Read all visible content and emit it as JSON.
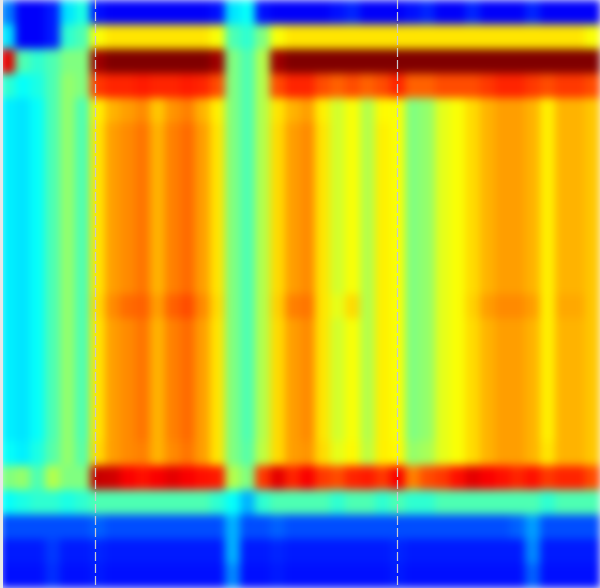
{
  "chart_data": {
    "type": "heatmap",
    "zlim": [
      0,
      1
    ],
    "tick_labels": false,
    "cells": [
      [
        0.25,
        0.12,
        0.12,
        0.15,
        0.35,
        0.4,
        0.14,
        0.12,
        0.12,
        0.12,
        0.12,
        0.12,
        0.12,
        0.12,
        0.14,
        0.35,
        0.38,
        0.14,
        0.12,
        0.12,
        0.12,
        0.12,
        0.14,
        0.16,
        0.12,
        0.12,
        0.12,
        0.14,
        0.16,
        0.12,
        0.12,
        0.16,
        0.12,
        0.12,
        0.12,
        0.16,
        0.12,
        0.12,
        0.12,
        0.12
      ],
      [
        0.35,
        0.12,
        0.12,
        0.15,
        0.42,
        0.45,
        0.62,
        0.65,
        0.65,
        0.65,
        0.65,
        0.65,
        0.65,
        0.65,
        0.62,
        0.45,
        0.42,
        0.5,
        0.62,
        0.65,
        0.65,
        0.65,
        0.65,
        0.65,
        0.65,
        0.65,
        0.65,
        0.65,
        0.65,
        0.65,
        0.65,
        0.65,
        0.65,
        0.65,
        0.65,
        0.65,
        0.65,
        0.65,
        0.65,
        0.62
      ],
      [
        0.9,
        0.45,
        0.42,
        0.45,
        0.5,
        0.5,
        0.97,
        1,
        1,
        1,
        1,
        1,
        1,
        1,
        0.97,
        0.5,
        0.45,
        0.55,
        0.97,
        1,
        1,
        1,
        1,
        1,
        1,
        1,
        1,
        1,
        1,
        1,
        1,
        1,
        1,
        1,
        1,
        1,
        1,
        1,
        1,
        1
      ],
      [
        0.42,
        0.38,
        0.4,
        0.45,
        0.52,
        0.5,
        0.82,
        0.84,
        0.84,
        0.85,
        0.84,
        0.84,
        0.85,
        0.84,
        0.8,
        0.5,
        0.45,
        0.55,
        0.8,
        0.84,
        0.84,
        0.8,
        0.78,
        0.8,
        0.78,
        0.8,
        0.84,
        0.78,
        0.78,
        0.8,
        0.8,
        0.8,
        0.82,
        0.84,
        0.84,
        0.82,
        0.8,
        0.82,
        0.82,
        0.8
      ],
      [
        0.36,
        0.35,
        0.38,
        0.45,
        0.52,
        0.45,
        0.64,
        0.7,
        0.72,
        0.74,
        0.68,
        0.73,
        0.75,
        0.7,
        0.64,
        0.5,
        0.45,
        0.55,
        0.65,
        0.7,
        0.72,
        0.64,
        0.58,
        0.62,
        0.55,
        0.63,
        0.62,
        0.5,
        0.52,
        0.6,
        0.62,
        0.66,
        0.7,
        0.72,
        0.72,
        0.7,
        0.64,
        0.7,
        0.7,
        0.68
      ],
      [
        0.36,
        0.35,
        0.38,
        0.45,
        0.52,
        0.45,
        0.65,
        0.72,
        0.74,
        0.76,
        0.7,
        0.75,
        0.77,
        0.72,
        0.65,
        0.5,
        0.45,
        0.55,
        0.66,
        0.72,
        0.74,
        0.65,
        0.58,
        0.62,
        0.55,
        0.64,
        0.62,
        0.5,
        0.52,
        0.6,
        0.62,
        0.66,
        0.7,
        0.72,
        0.72,
        0.7,
        0.64,
        0.7,
        0.7,
        0.68
      ],
      [
        0.36,
        0.35,
        0.38,
        0.45,
        0.52,
        0.45,
        0.65,
        0.72,
        0.74,
        0.76,
        0.7,
        0.75,
        0.77,
        0.72,
        0.65,
        0.5,
        0.45,
        0.55,
        0.66,
        0.72,
        0.74,
        0.65,
        0.58,
        0.62,
        0.55,
        0.64,
        0.62,
        0.5,
        0.52,
        0.6,
        0.62,
        0.66,
        0.7,
        0.72,
        0.72,
        0.7,
        0.64,
        0.7,
        0.7,
        0.68
      ],
      [
        0.36,
        0.35,
        0.38,
        0.45,
        0.52,
        0.45,
        0.65,
        0.72,
        0.74,
        0.76,
        0.7,
        0.75,
        0.77,
        0.72,
        0.65,
        0.5,
        0.45,
        0.55,
        0.66,
        0.72,
        0.74,
        0.65,
        0.58,
        0.62,
        0.55,
        0.64,
        0.62,
        0.5,
        0.52,
        0.6,
        0.62,
        0.66,
        0.7,
        0.72,
        0.72,
        0.7,
        0.64,
        0.7,
        0.7,
        0.68
      ],
      [
        0.36,
        0.35,
        0.38,
        0.45,
        0.52,
        0.45,
        0.65,
        0.72,
        0.74,
        0.76,
        0.7,
        0.75,
        0.77,
        0.72,
        0.65,
        0.5,
        0.45,
        0.55,
        0.66,
        0.72,
        0.74,
        0.65,
        0.58,
        0.62,
        0.55,
        0.64,
        0.62,
        0.5,
        0.52,
        0.6,
        0.62,
        0.66,
        0.7,
        0.72,
        0.72,
        0.7,
        0.64,
        0.7,
        0.7,
        0.68
      ],
      [
        0.36,
        0.35,
        0.38,
        0.45,
        0.52,
        0.45,
        0.65,
        0.72,
        0.74,
        0.76,
        0.7,
        0.75,
        0.77,
        0.72,
        0.65,
        0.5,
        0.45,
        0.55,
        0.66,
        0.72,
        0.74,
        0.65,
        0.58,
        0.62,
        0.55,
        0.64,
        0.62,
        0.5,
        0.52,
        0.6,
        0.62,
        0.66,
        0.7,
        0.72,
        0.72,
        0.7,
        0.64,
        0.7,
        0.7,
        0.68
      ],
      [
        0.36,
        0.35,
        0.38,
        0.45,
        0.52,
        0.45,
        0.65,
        0.72,
        0.74,
        0.76,
        0.7,
        0.75,
        0.77,
        0.72,
        0.65,
        0.5,
        0.45,
        0.55,
        0.66,
        0.72,
        0.74,
        0.65,
        0.58,
        0.62,
        0.55,
        0.64,
        0.62,
        0.5,
        0.52,
        0.6,
        0.62,
        0.66,
        0.7,
        0.72,
        0.72,
        0.7,
        0.64,
        0.7,
        0.7,
        0.68
      ],
      [
        0.36,
        0.35,
        0.38,
        0.45,
        0.52,
        0.45,
        0.65,
        0.72,
        0.74,
        0.76,
        0.7,
        0.75,
        0.77,
        0.72,
        0.65,
        0.5,
        0.45,
        0.55,
        0.66,
        0.72,
        0.74,
        0.65,
        0.58,
        0.62,
        0.55,
        0.64,
        0.62,
        0.5,
        0.52,
        0.6,
        0.62,
        0.66,
        0.7,
        0.72,
        0.72,
        0.7,
        0.64,
        0.7,
        0.7,
        0.68
      ],
      [
        0.36,
        0.35,
        0.38,
        0.45,
        0.52,
        0.45,
        0.66,
        0.74,
        0.77,
        0.78,
        0.72,
        0.78,
        0.8,
        0.74,
        0.66,
        0.5,
        0.45,
        0.55,
        0.67,
        0.75,
        0.76,
        0.65,
        0.6,
        0.66,
        0.55,
        0.64,
        0.62,
        0.5,
        0.52,
        0.6,
        0.62,
        0.67,
        0.72,
        0.74,
        0.74,
        0.72,
        0.64,
        0.71,
        0.71,
        0.68
      ],
      [
        0.36,
        0.35,
        0.38,
        0.45,
        0.52,
        0.45,
        0.65,
        0.72,
        0.74,
        0.76,
        0.7,
        0.75,
        0.77,
        0.72,
        0.65,
        0.5,
        0.45,
        0.55,
        0.66,
        0.72,
        0.74,
        0.65,
        0.58,
        0.62,
        0.55,
        0.64,
        0.62,
        0.5,
        0.52,
        0.6,
        0.62,
        0.66,
        0.7,
        0.72,
        0.72,
        0.7,
        0.64,
        0.7,
        0.7,
        0.68
      ],
      [
        0.36,
        0.35,
        0.38,
        0.45,
        0.52,
        0.45,
        0.65,
        0.72,
        0.74,
        0.76,
        0.7,
        0.75,
        0.77,
        0.72,
        0.65,
        0.5,
        0.45,
        0.55,
        0.66,
        0.72,
        0.74,
        0.65,
        0.58,
        0.62,
        0.55,
        0.64,
        0.62,
        0.5,
        0.52,
        0.6,
        0.62,
        0.66,
        0.7,
        0.72,
        0.72,
        0.7,
        0.64,
        0.7,
        0.7,
        0.68
      ],
      [
        0.36,
        0.35,
        0.38,
        0.45,
        0.52,
        0.45,
        0.65,
        0.72,
        0.74,
        0.76,
        0.7,
        0.75,
        0.77,
        0.72,
        0.65,
        0.5,
        0.45,
        0.55,
        0.66,
        0.72,
        0.74,
        0.65,
        0.58,
        0.62,
        0.55,
        0.64,
        0.62,
        0.5,
        0.52,
        0.6,
        0.62,
        0.66,
        0.7,
        0.72,
        0.72,
        0.7,
        0.64,
        0.7,
        0.7,
        0.68
      ],
      [
        0.36,
        0.35,
        0.38,
        0.45,
        0.52,
        0.45,
        0.65,
        0.72,
        0.74,
        0.76,
        0.7,
        0.75,
        0.77,
        0.72,
        0.65,
        0.5,
        0.45,
        0.55,
        0.66,
        0.72,
        0.74,
        0.65,
        0.58,
        0.62,
        0.55,
        0.64,
        0.62,
        0.5,
        0.52,
        0.6,
        0.62,
        0.66,
        0.7,
        0.72,
        0.72,
        0.7,
        0.64,
        0.7,
        0.7,
        0.68
      ],
      [
        0.36,
        0.35,
        0.38,
        0.45,
        0.52,
        0.45,
        0.65,
        0.72,
        0.74,
        0.76,
        0.7,
        0.75,
        0.77,
        0.72,
        0.65,
        0.5,
        0.45,
        0.55,
        0.66,
        0.72,
        0.74,
        0.65,
        0.58,
        0.62,
        0.55,
        0.64,
        0.62,
        0.5,
        0.52,
        0.6,
        0.62,
        0.66,
        0.7,
        0.72,
        0.72,
        0.7,
        0.64,
        0.7,
        0.7,
        0.68
      ],
      [
        0.38,
        0.36,
        0.4,
        0.46,
        0.52,
        0.46,
        0.66,
        0.72,
        0.74,
        0.75,
        0.7,
        0.74,
        0.76,
        0.72,
        0.65,
        0.5,
        0.46,
        0.56,
        0.66,
        0.72,
        0.73,
        0.66,
        0.6,
        0.63,
        0.56,
        0.64,
        0.63,
        0.52,
        0.54,
        0.6,
        0.62,
        0.66,
        0.7,
        0.72,
        0.72,
        0.7,
        0.65,
        0.7,
        0.7,
        0.68
      ],
      [
        0.5,
        0.52,
        0.45,
        0.55,
        0.5,
        0.5,
        0.93,
        0.92,
        0.88,
        0.86,
        0.88,
        0.9,
        0.88,
        0.86,
        0.85,
        0.55,
        0.5,
        0.82,
        0.9,
        0.84,
        0.88,
        0.82,
        0.8,
        0.84,
        0.85,
        0.82,
        0.88,
        0.75,
        0.8,
        0.82,
        0.86,
        0.9,
        0.88,
        0.86,
        0.84,
        0.86,
        0.82,
        0.84,
        0.84,
        0.8
      ],
      [
        0.38,
        0.4,
        0.42,
        0.42,
        0.4,
        0.42,
        0.45,
        0.45,
        0.45,
        0.45,
        0.45,
        0.45,
        0.45,
        0.45,
        0.42,
        0.38,
        0.3,
        0.42,
        0.45,
        0.45,
        0.45,
        0.45,
        0.42,
        0.45,
        0.45,
        0.42,
        0.45,
        0.42,
        0.42,
        0.45,
        0.45,
        0.45,
        0.45,
        0.45,
        0.45,
        0.45,
        0.42,
        0.45,
        0.45,
        0.45
      ],
      [
        0.2,
        0.2,
        0.2,
        0.2,
        0.2,
        0.2,
        0.22,
        0.2,
        0.2,
        0.2,
        0.2,
        0.2,
        0.2,
        0.2,
        0.2,
        0.3,
        0.2,
        0.2,
        0.22,
        0.2,
        0.2,
        0.2,
        0.2,
        0.2,
        0.2,
        0.2,
        0.2,
        0.2,
        0.2,
        0.2,
        0.2,
        0.2,
        0.2,
        0.2,
        0.22,
        0.28,
        0.2,
        0.2,
        0.2,
        0.2
      ],
      [
        0.15,
        0.15,
        0.15,
        0.18,
        0.15,
        0.15,
        0.16,
        0.15,
        0.15,
        0.15,
        0.15,
        0.15,
        0.15,
        0.15,
        0.15,
        0.3,
        0.15,
        0.15,
        0.16,
        0.15,
        0.15,
        0.15,
        0.15,
        0.15,
        0.15,
        0.15,
        0.16,
        0.15,
        0.15,
        0.15,
        0.15,
        0.15,
        0.15,
        0.15,
        0.15,
        0.26,
        0.15,
        0.15,
        0.15,
        0.15
      ],
      [
        0.14,
        0.14,
        0.14,
        0.17,
        0.14,
        0.14,
        0.15,
        0.14,
        0.14,
        0.14,
        0.14,
        0.14,
        0.14,
        0.14,
        0.14,
        0.26,
        0.14,
        0.14,
        0.15,
        0.14,
        0.14,
        0.14,
        0.14,
        0.14,
        0.14,
        0.14,
        0.15,
        0.14,
        0.14,
        0.14,
        0.14,
        0.14,
        0.14,
        0.14,
        0.14,
        0.22,
        0.14,
        0.14,
        0.14,
        0.14
      ]
    ]
  }
}
